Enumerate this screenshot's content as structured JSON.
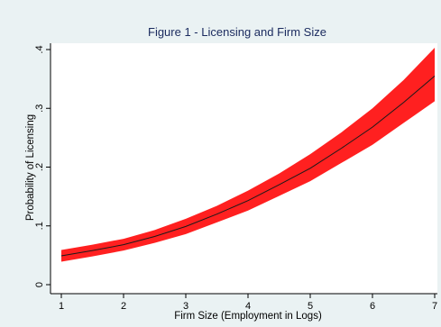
{
  "chart_data": {
    "type": "line",
    "title": "Figure 1 - Licensing and Firm Size",
    "xlabel": "Firm Size (Employment in Logs)",
    "ylabel": "Probability of Licensing",
    "xlim": [
      1,
      7
    ],
    "ylim": [
      0,
      0.4
    ],
    "x_ticks": [
      1,
      2,
      3,
      4,
      5,
      6,
      7
    ],
    "y_ticks": [
      {
        "value": 0,
        "label": "0"
      },
      {
        "value": 0.1,
        "label": ".1"
      },
      {
        "value": 0.2,
        "label": ".2"
      },
      {
        "value": 0.3,
        "label": ".3"
      },
      {
        "value": 0.4,
        "label": ".4"
      }
    ],
    "grid": false,
    "series": [
      {
        "x": [
          1,
          1.5,
          2,
          2.5,
          3,
          3.5,
          4,
          4.5,
          5,
          5.5,
          6,
          6.5,
          7
        ],
        "values": [
          0.049,
          0.058,
          0.068,
          0.082,
          0.099,
          0.12,
          0.143,
          0.17,
          0.198,
          0.232,
          0.268,
          0.31,
          0.355
        ],
        "lower": [
          0.039,
          0.048,
          0.058,
          0.071,
          0.086,
          0.106,
          0.126,
          0.151,
          0.176,
          0.207,
          0.238,
          0.275,
          0.312
        ],
        "upper": [
          0.059,
          0.068,
          0.078,
          0.093,
          0.112,
          0.134,
          0.16,
          0.189,
          0.222,
          0.259,
          0.3,
          0.348,
          0.403
        ]
      }
    ],
    "colors": {
      "background": "#eaf2f3",
      "plot_area": "#ffffff",
      "band": "#ff2020",
      "line": "#1a1a1a",
      "title": "#1a2a5e",
      "axis": "#000000"
    }
  }
}
